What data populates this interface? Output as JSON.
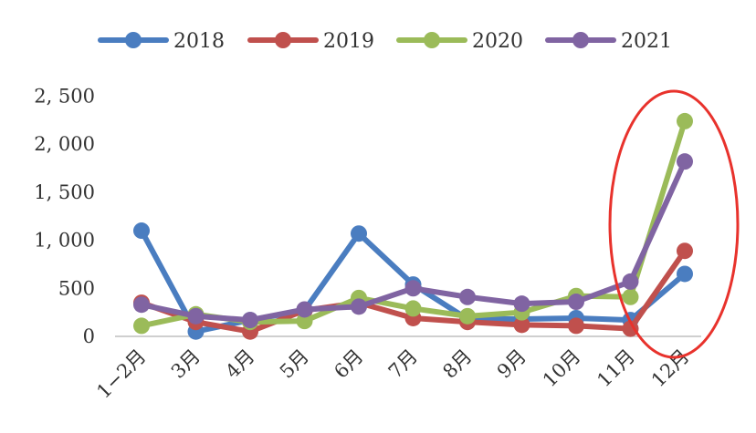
{
  "chart_data": {
    "type": "line",
    "title": "",
    "xlabel": "",
    "ylabel": "",
    "categories": [
      "1−2月",
      "3月",
      "4月",
      "5月",
      "6月",
      "7月",
      "8月",
      "9月",
      "10月",
      "11月",
      "12月"
    ],
    "y_tick_labels": [
      "0",
      "500",
      "1, 000",
      "1, 500",
      "2, 000",
      "2, 500"
    ],
    "ylim": [
      0,
      2500
    ],
    "grid": false,
    "legend_position": "top",
    "highlight": {
      "shape": "ellipse",
      "color": "#e8322c",
      "categories": [
        "11月",
        "12月"
      ]
    },
    "series": [
      {
        "name": "2018",
        "color": "#4a7dc0",
        "values": [
          1100,
          50,
          170,
          270,
          1070,
          540,
          180,
          180,
          190,
          170,
          650
        ]
      },
      {
        "name": "2019",
        "color": "#c0504d",
        "values": [
          350,
          150,
          50,
          270,
          350,
          190,
          150,
          120,
          110,
          80,
          890
        ]
      },
      {
        "name": "2020",
        "color": "#9bbb59",
        "values": [
          110,
          230,
          150,
          160,
          400,
          290,
          210,
          250,
          420,
          410,
          2240
        ]
      },
      {
        "name": "2021",
        "color": "#8064a2",
        "values": [
          330,
          210,
          170,
          280,
          310,
          500,
          410,
          340,
          360,
          570,
          1820
        ]
      }
    ]
  }
}
